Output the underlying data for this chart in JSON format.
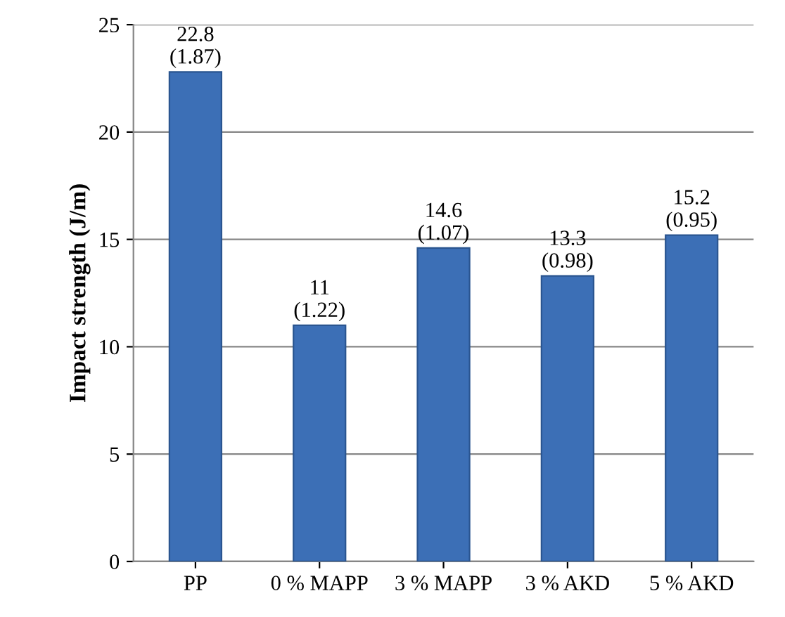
{
  "chart_data": {
    "type": "bar",
    "ylabel": "Impact strength (J/m)",
    "categories": [
      "PP",
      "0 % MAPP",
      "3 % MAPP",
      "3 % AKD",
      "5 % AKD"
    ],
    "values": [
      22.8,
      11,
      14.6,
      13.3,
      15.2
    ],
    "value_labels": [
      "22.8\n(1.87)",
      "11\n(1.22)",
      "14.6\n(1.07)",
      "13.3\n(0.98)",
      "15.2\n(0.95)"
    ],
    "color": "#3c6fb6",
    "ylim": [
      0,
      25
    ],
    "yticks": [
      0,
      5,
      10,
      15,
      20,
      25
    ],
    "grid": "y"
  }
}
